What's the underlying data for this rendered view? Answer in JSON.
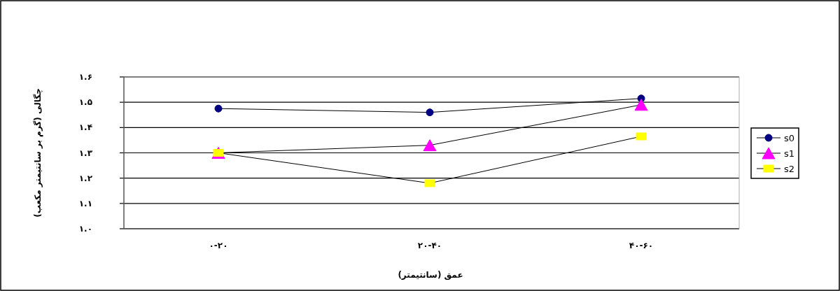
{
  "chart_data": {
    "type": "line",
    "xlabel": "عمق (سانتیمتر)",
    "ylabel": "چگالی (گرم بر سانتیمتر مکعب)",
    "categories": [
      "۰-۲۰",
      "۲۰-۴۰",
      "۴۰-۶۰"
    ],
    "series": [
      {
        "name": "s0",
        "color": "#000080",
        "marker": "circle",
        "values": [
          1.475,
          1.46,
          1.515
        ]
      },
      {
        "name": "s1",
        "color": "#ff00ff",
        "marker": "triangle",
        "values": [
          1.3,
          1.33,
          1.49
        ]
      },
      {
        "name": "s2",
        "color": "#ffff00",
        "marker": "square",
        "values": [
          1.3,
          1.18,
          1.365
        ]
      }
    ],
    "ylim": [
      1.0,
      1.6
    ],
    "yticks": [
      {
        "value": 1.0,
        "label": "۱.۰"
      },
      {
        "value": 1.1,
        "label": "۱.۱"
      },
      {
        "value": 1.2,
        "label": "۱.۲"
      },
      {
        "value": 1.3,
        "label": "۱.۳"
      },
      {
        "value": 1.4,
        "label": "۱.۴"
      },
      {
        "value": 1.5,
        "label": "۱.۵"
      },
      {
        "value": 1.6,
        "label": "۱.۶"
      }
    ],
    "grid": "y",
    "legend": "right",
    "line_style": "solid"
  }
}
